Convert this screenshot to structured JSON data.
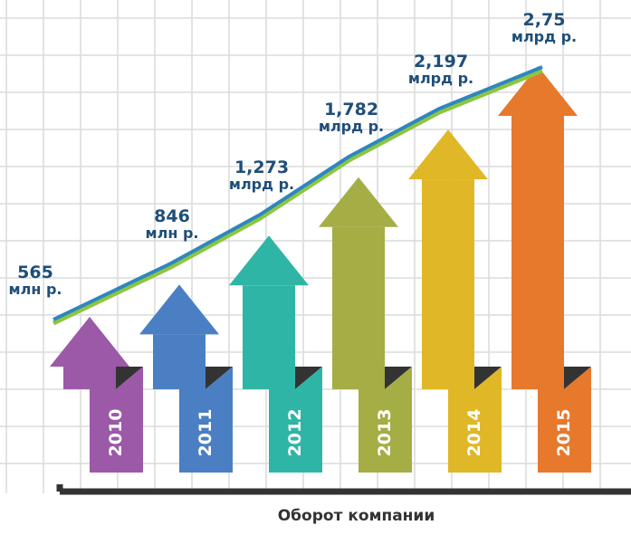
{
  "chart_data": {
    "type": "bar",
    "title": "",
    "xlabel": "Оборот компании",
    "ylabel": "",
    "categories": [
      "2010",
      "2011",
      "2012",
      "2013",
      "2014",
      "2015"
    ],
    "values_rub_mln": [
      565,
      846,
      1273,
      1782,
      2197,
      2750
    ],
    "value_labels": [
      {
        "num": "565",
        "unit": "млн р."
      },
      {
        "num": "846",
        "unit": "млн р."
      },
      {
        "num": "1,273",
        "unit": "млрд р."
      },
      {
        "num": "1,782",
        "unit": "млрд р."
      },
      {
        "num": "2,197",
        "unit": "млрд р."
      },
      {
        "num": "2,75",
        "unit": "млрд р."
      }
    ],
    "colors": [
      "#9b59a8",
      "#4a7fc4",
      "#2fb5a6",
      "#a5ad45",
      "#e0b726",
      "#e6792c"
    ],
    "line_colors": [
      "#8cc63f",
      "#2e86c1"
    ],
    "grid": true,
    "legend": "none"
  }
}
